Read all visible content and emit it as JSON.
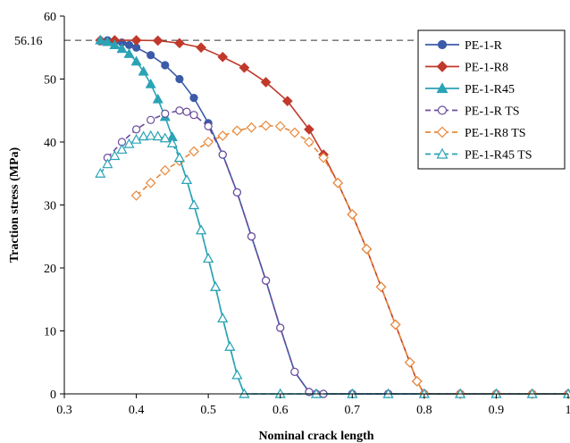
{
  "chart_data": {
    "type": "line",
    "title": "",
    "xlabel": "Nominal crack length",
    "ylabel": "Traction stress (MPa)",
    "xlim": [
      0.3,
      1.0
    ],
    "ylim": [
      0,
      60
    ],
    "x_ticks": [
      0.3,
      0.4,
      0.5,
      0.6,
      0.7,
      0.8,
      0.9,
      1.0
    ],
    "x_tick_labels": [
      "0.3",
      "0.4",
      "0.5",
      "0.6",
      "0.7",
      "0.8",
      "0.9",
      "1"
    ],
    "y_ticks": [
      0,
      10,
      20,
      30,
      40,
      50,
      60
    ],
    "y_tick_labels": [
      "0",
      "10",
      "20",
      "30",
      "40",
      "50",
      "60"
    ],
    "grid": false,
    "legend_position": "top-right",
    "reference_line": {
      "y": 56.16,
      "label": "56.16",
      "style": "dashed"
    },
    "series": [
      {
        "name": "PE-1-R",
        "color": "#3b5ba8",
        "marker": "circle-filled",
        "line": "solid",
        "x": [
          0.35,
          0.36,
          0.37,
          0.38,
          0.39,
          0.4,
          0.42,
          0.44,
          0.46,
          0.48,
          0.5,
          0.52,
          0.54,
          0.56,
          0.58,
          0.6,
          0.62,
          0.64,
          0.65,
          0.66,
          0.7,
          0.75,
          0.8,
          0.85,
          0.9,
          0.95,
          1.0
        ],
        "y": [
          56.0,
          56.16,
          56.0,
          55.8,
          55.4,
          55.0,
          53.8,
          52.2,
          50.0,
          47.0,
          43.0,
          38.0,
          32.0,
          25.0,
          18.0,
          10.5,
          3.5,
          0.3,
          0,
          0,
          0,
          0,
          0,
          0,
          0,
          0,
          0
        ]
      },
      {
        "name": "PE-1-R8",
        "color": "#c0392b",
        "marker": "diamond-filled",
        "line": "solid",
        "x": [
          0.35,
          0.37,
          0.4,
          0.43,
          0.46,
          0.49,
          0.52,
          0.55,
          0.58,
          0.61,
          0.64,
          0.66,
          0.68,
          0.7,
          0.72,
          0.74,
          0.76,
          0.78,
          0.79,
          0.8,
          0.85,
          0.9,
          0.95,
          1.0
        ],
        "y": [
          56.16,
          56.16,
          56.16,
          56.1,
          55.7,
          55.0,
          53.5,
          51.8,
          49.5,
          46.5,
          42.0,
          38.0,
          33.5,
          28.5,
          23.0,
          17.0,
          11.0,
          5.0,
          2.0,
          0,
          0,
          0,
          0,
          0
        ]
      },
      {
        "name": "PE-1-R45",
        "color": "#2aa3b5",
        "marker": "triangle-filled",
        "line": "solid",
        "x": [
          0.35,
          0.36,
          0.37,
          0.38,
          0.39,
          0.4,
          0.41,
          0.42,
          0.43,
          0.44,
          0.45,
          0.46,
          0.47,
          0.48,
          0.49,
          0.5,
          0.51,
          0.52,
          0.53,
          0.54,
          0.55,
          0.6,
          0.65,
          0.7,
          0.75,
          0.8,
          0.85,
          0.9,
          0.95,
          1.0
        ],
        "y": [
          56.16,
          55.9,
          55.4,
          54.8,
          54.0,
          52.8,
          51.2,
          49.2,
          46.8,
          44.0,
          40.8,
          37.5,
          34.0,
          30.0,
          26.0,
          21.5,
          17.0,
          12.0,
          7.5,
          3.0,
          0,
          0,
          0,
          0,
          0,
          0,
          0,
          0,
          0,
          0
        ]
      },
      {
        "name": "PE-1-R TS",
        "color": "#6a4c9c",
        "marker": "circle-open",
        "line": "dashed",
        "x": [
          0.36,
          0.38,
          0.4,
          0.42,
          0.44,
          0.46,
          0.47,
          0.48,
          0.5,
          0.52,
          0.54,
          0.56,
          0.58,
          0.6,
          0.62,
          0.64,
          0.65,
          0.66,
          0.7,
          0.75,
          0.8,
          0.85,
          0.9,
          0.95,
          1.0
        ],
        "y": [
          37.5,
          40.0,
          42.0,
          43.5,
          44.5,
          45.0,
          44.8,
          44.3,
          42.5,
          38.0,
          32.0,
          25.0,
          18.0,
          10.5,
          3.5,
          0.3,
          0,
          0,
          0,
          0,
          0,
          0,
          0,
          0,
          0
        ]
      },
      {
        "name": "PE-1-R8 TS",
        "color": "#e8883a",
        "marker": "diamond-open",
        "line": "dashed",
        "x": [
          0.4,
          0.42,
          0.44,
          0.46,
          0.48,
          0.5,
          0.52,
          0.54,
          0.56,
          0.58,
          0.6,
          0.62,
          0.64,
          0.66,
          0.68,
          0.7,
          0.72,
          0.74,
          0.76,
          0.78,
          0.79,
          0.8,
          0.85,
          0.9,
          0.95,
          1.0
        ],
        "y": [
          31.5,
          33.5,
          35.5,
          37.0,
          38.5,
          40.0,
          41.0,
          41.8,
          42.3,
          42.6,
          42.5,
          41.5,
          40.0,
          37.5,
          33.5,
          28.5,
          23.0,
          17.0,
          11.0,
          5.0,
          2.0,
          0,
          0,
          0,
          0,
          0
        ]
      },
      {
        "name": "PE-1-R45 TS",
        "color": "#2aa3b5",
        "marker": "triangle-open",
        "line": "dashed",
        "x": [
          0.35,
          0.36,
          0.37,
          0.38,
          0.39,
          0.4,
          0.41,
          0.42,
          0.43,
          0.44,
          0.45,
          0.46,
          0.47,
          0.48,
          0.49,
          0.5,
          0.51,
          0.52,
          0.53,
          0.54,
          0.55,
          0.6,
          0.65,
          0.7,
          0.75,
          0.8,
          0.85,
          0.9,
          0.95,
          1.0
        ],
        "y": [
          35.0,
          36.5,
          37.8,
          38.8,
          39.7,
          40.4,
          40.9,
          41.0,
          40.9,
          40.6,
          39.8,
          37.5,
          34.0,
          30.0,
          26.0,
          21.5,
          17.0,
          12.0,
          7.5,
          3.0,
          0,
          0,
          0,
          0,
          0,
          0,
          0,
          0,
          0,
          0
        ]
      }
    ]
  }
}
